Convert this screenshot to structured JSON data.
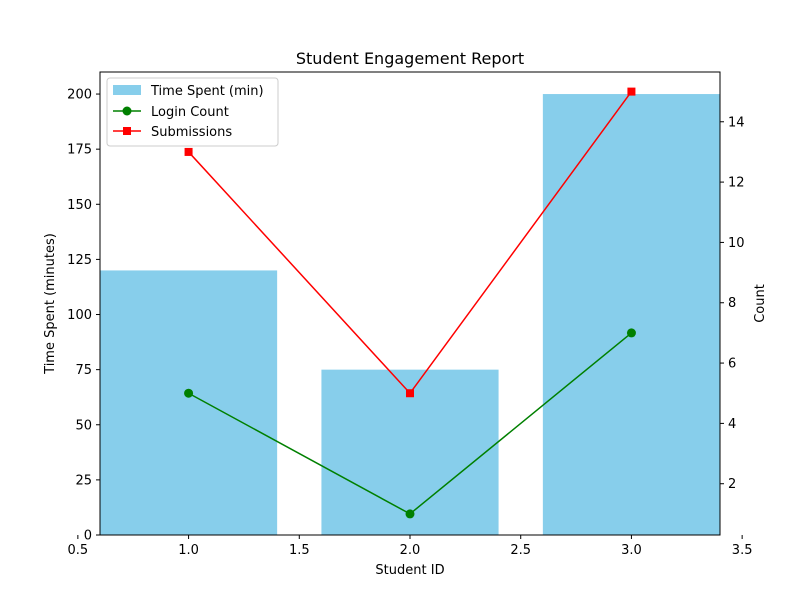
{
  "chart_data": {
    "type": "bar",
    "title": "Student Engagement Report",
    "xlabel": "Student ID",
    "ylabel": "Time Spent (minutes)",
    "y2label": "Count",
    "x": [
      1.0,
      2.0,
      3.0
    ],
    "xlim": [
      0.6,
      3.4
    ],
    "xticks": [
      "0.5",
      "1.0",
      "1.5",
      "2.0",
      "2.5",
      "3.0",
      "3.5"
    ],
    "ylim": [
      0,
      210
    ],
    "yticks": [
      "0",
      "25",
      "50",
      "75",
      "100",
      "125",
      "150",
      "175",
      "200"
    ],
    "y2lim": [
      0.3,
      15.65
    ],
    "y2ticks": [
      "2",
      "4",
      "6",
      "8",
      "10",
      "12",
      "14"
    ],
    "grid": false,
    "legend_position": "top-left",
    "series": [
      {
        "name": "Time Spent (min)",
        "kind": "bar",
        "axis": "left",
        "color": "#87ceeb",
        "values": [
          120,
          75,
          200
        ]
      },
      {
        "name": "Login Count",
        "kind": "line",
        "axis": "right",
        "marker": "circle",
        "color": "#008000",
        "values": [
          5,
          1,
          7
        ]
      },
      {
        "name": "Submissions",
        "kind": "line",
        "axis": "right",
        "marker": "square",
        "color": "#ff0000",
        "values": [
          13,
          5,
          15
        ]
      }
    ]
  }
}
